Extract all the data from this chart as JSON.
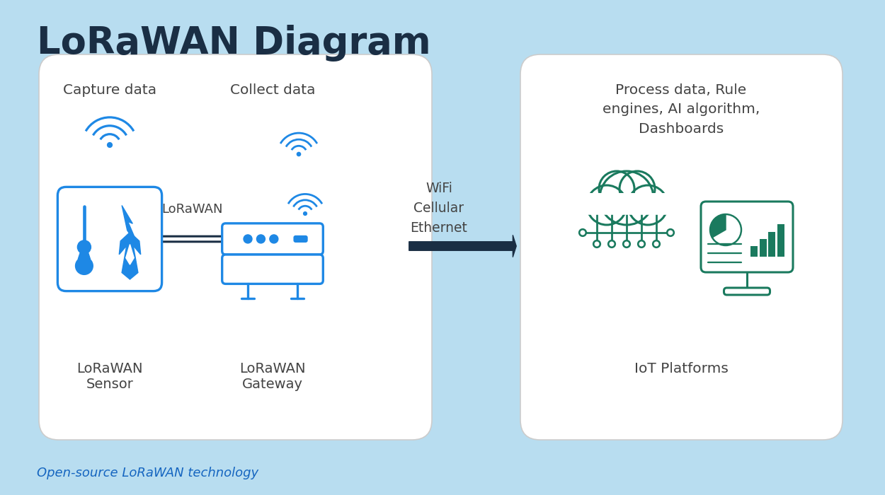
{
  "title": "LoRaWAN Diagram",
  "background_color": "#b8ddf0",
  "title_color": "#1a2e44",
  "title_fontsize": 38,
  "title_fontweight": "bold",
  "sensor_color": "#1e88e5",
  "gateway_color": "#1e88e5",
  "iot_color": "#1a7a5e",
  "arrow_dark": "#1a2e44",
  "capture_data_label": "Capture data",
  "collect_data_label": "Collect data",
  "lorawan_label": "LoRaWAN",
  "wifi_label": "WiFi\nCellular\nEthernet",
  "sensor_label": "LoRaWAN\nSensor",
  "gateway_label": "LoRaWAN\nGateway",
  "iot_platforms_label": "IoT Platforms",
  "process_data_label": "Process data, Rule\nengines, AI algorithm,\nDashboards",
  "footer_label": "Open-source LoRaWAN technology",
  "footer_color": "#1565c0",
  "label_color": "#444444"
}
